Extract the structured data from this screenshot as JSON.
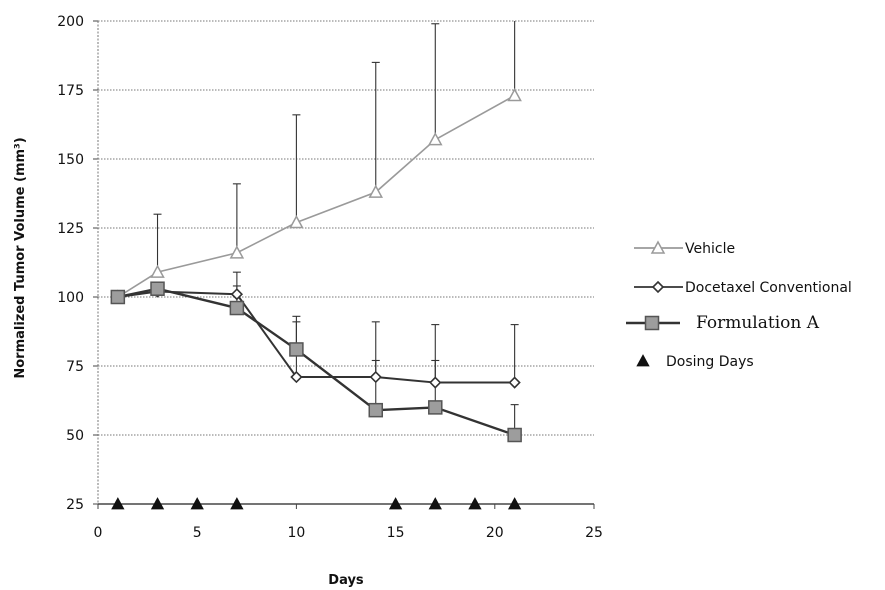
{
  "chart_data": {
    "type": "line",
    "title": "",
    "xlabel": "Days",
    "ylabel": "Normalized Tumor Volume (mm³)",
    "xlim": [
      0,
      25
    ],
    "ylim": [
      25,
      200
    ],
    "x_ticks": [
      0,
      5,
      10,
      15,
      20,
      25
    ],
    "y_ticks": [
      25,
      50,
      75,
      100,
      125,
      150,
      175,
      200
    ],
    "grid": "horizontal",
    "legend_position": "right",
    "series": [
      {
        "name": "Vehicle",
        "color": "#9a9a9a",
        "marker": "triangle-open",
        "x": [
          1,
          3,
          7,
          10,
          14,
          17,
          21
        ],
        "y": [
          100,
          109,
          116,
          127,
          138,
          157,
          173
        ],
        "error_upper": [
          100,
          130,
          141,
          166,
          185,
          199,
          200
        ]
      },
      {
        "name": "Docetaxel Conventional",
        "color": "#333333",
        "marker": "diamond",
        "x": [
          1,
          3,
          7,
          10,
          14,
          17,
          21
        ],
        "y": [
          100,
          102,
          101,
          71,
          71,
          69,
          69
        ],
        "error_upper": [
          100,
          102,
          109,
          93,
          91,
          90,
          90
        ]
      },
      {
        "name": "Formulation A",
        "color": "#333333",
        "marker": "square",
        "x": [
          1,
          3,
          7,
          10,
          14,
          17,
          21
        ],
        "y": [
          100,
          103,
          96,
          81,
          59,
          60,
          50
        ],
        "error_upper": [
          100,
          103,
          104,
          91,
          77,
          77,
          61
        ]
      },
      {
        "name": "Dosing Days",
        "color": "#111111",
        "marker": "triangle-filled",
        "x": [
          1,
          3,
          5,
          7,
          15,
          17,
          19,
          21
        ],
        "y": [
          25,
          25,
          25,
          25,
          25,
          25,
          25,
          25
        ]
      }
    ]
  }
}
